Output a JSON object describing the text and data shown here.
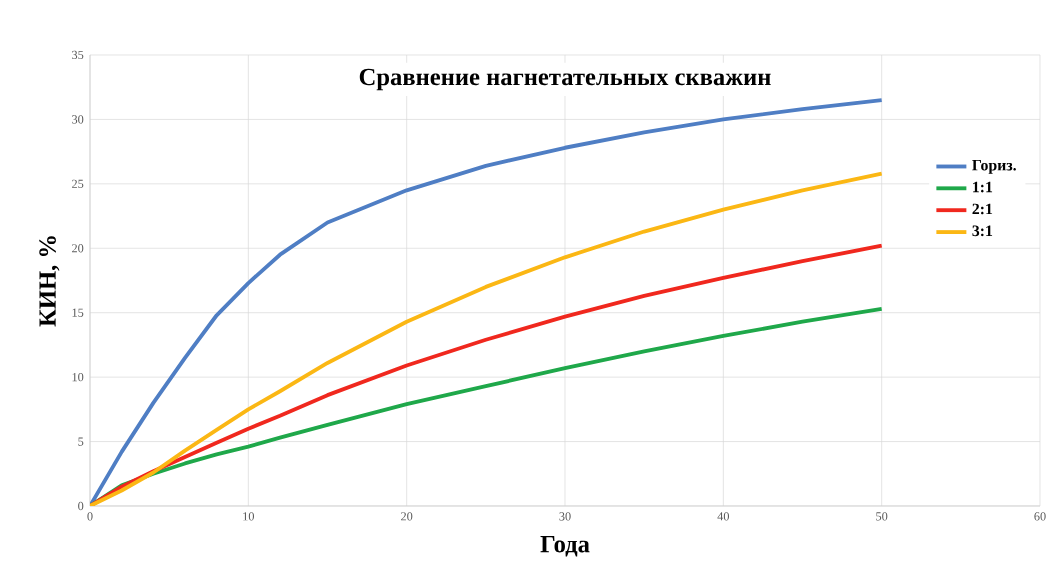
{
  "chart_data": {
    "type": "line",
    "title": "Сравнение нагнетательных скважин",
    "xlabel": "Года",
    "ylabel": "КИН, %",
    "xlim": [
      0,
      60
    ],
    "xticks": [
      0,
      10,
      20,
      30,
      40,
      50,
      60
    ],
    "ylim": [
      0,
      35
    ],
    "yticks": [
      0,
      5,
      10,
      15,
      20,
      25,
      30,
      35
    ],
    "grid": true,
    "legend": "right",
    "marker": "none",
    "line_style": "solid",
    "x": [
      0,
      2,
      4,
      6,
      8,
      10,
      12,
      15,
      20,
      25,
      30,
      35,
      40,
      45,
      50
    ],
    "series": [
      {
        "name": "Гориз.",
        "color": "#4f7ec4",
        "values": [
          0,
          4.2,
          8,
          11.5,
          14.8,
          17.3,
          19.5,
          22,
          24.5,
          26.4,
          27.8,
          29,
          30,
          30.8,
          31.5
        ]
      },
      {
        "name": "1:1",
        "color": "#1fa84a",
        "values": [
          0,
          1.6,
          2.5,
          3.3,
          4,
          4.6,
          5.3,
          6.3,
          7.9,
          9.3,
          10.7,
          12,
          13.2,
          14.3,
          15.3
        ]
      },
      {
        "name": "2:1",
        "color": "#f0281e",
        "values": [
          0,
          1.5,
          2.7,
          3.8,
          4.9,
          6,
          7,
          8.6,
          10.9,
          12.9,
          14.7,
          16.3,
          17.7,
          19,
          20.2
        ]
      },
      {
        "name": "3:1",
        "color": "#fbb714",
        "values": [
          0,
          1.2,
          2.6,
          4.3,
          5.9,
          7.5,
          8.9,
          11.1,
          14.3,
          17,
          19.3,
          21.3,
          23,
          24.5,
          25.8
        ]
      }
    ]
  }
}
